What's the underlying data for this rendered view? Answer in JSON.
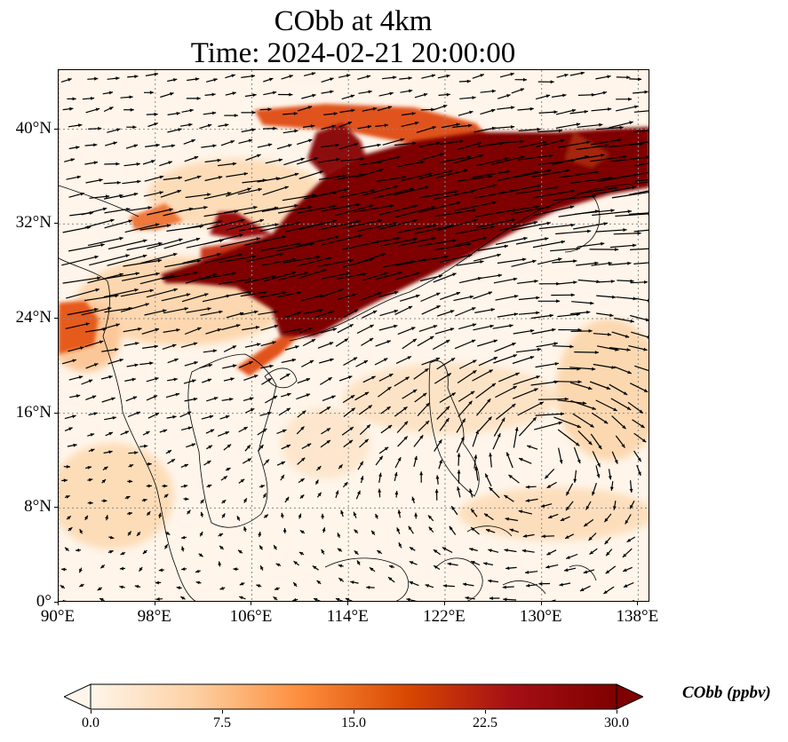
{
  "title": "CObb at 4km",
  "subtitle": "Time: 2024-02-21 20:00:00",
  "map": {
    "projection": "PlateCarree",
    "lon_range": [
      90,
      139
    ],
    "lat_range": [
      0,
      45
    ],
    "gridlines": "dotted",
    "coastlines": true,
    "field": "CObb concentration (shaded)",
    "vectors": "wind arrows"
  },
  "x_ticks": [
    "90°E",
    "98°E",
    "106°E",
    "114°E",
    "122°E",
    "130°E",
    "138°E"
  ],
  "x_tick_values": [
    90,
    98,
    106,
    114,
    122,
    130,
    138
  ],
  "y_ticks": [
    "0°",
    "8°N",
    "16°N",
    "24°N",
    "32°N",
    "40°N"
  ],
  "y_tick_values": [
    0,
    8,
    16,
    24,
    32,
    40
  ],
  "colorbar": {
    "label": "CObb (ppbv)",
    "ticks": [
      "0.0",
      "7.5",
      "15.0",
      "22.5",
      "30.0"
    ],
    "tick_values": [
      0,
      7.5,
      15,
      22.5,
      30
    ],
    "range": [
      0,
      30
    ],
    "extend": "both",
    "colormap": [
      "#fff5eb",
      "#fdd0a2",
      "#fd8d3c",
      "#d94801",
      "#a50f15",
      "#7f0000"
    ]
  }
}
